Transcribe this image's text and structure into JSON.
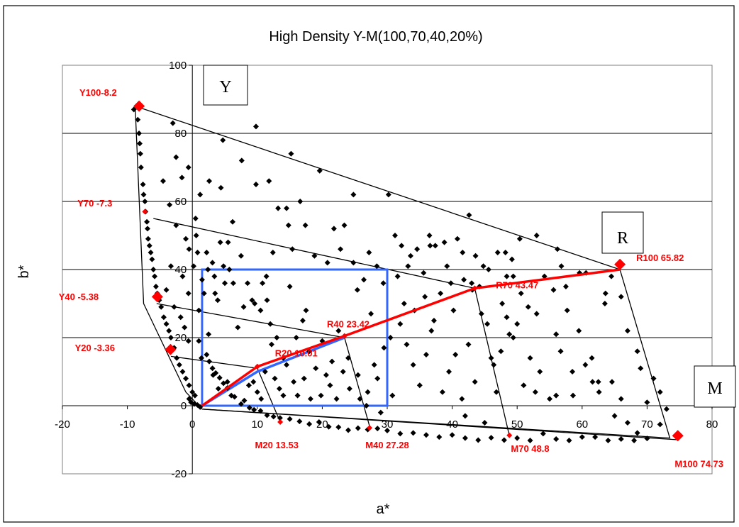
{
  "chart_data": {
    "type": "scatter",
    "title": "High Density Y-M(100,70,40,20%)",
    "xlabel": "a*",
    "ylabel": "b*",
    "xlim": [
      -20,
      80
    ],
    "ylim": [
      -20,
      100
    ],
    "x_ticks": [
      -20,
      -10,
      0,
      10,
      20,
      30,
      40,
      50,
      60,
      70,
      80
    ],
    "y_ticks": [
      -20,
      0,
      20,
      40,
      60,
      80,
      100
    ],
    "grid": "horizontal",
    "colors": {
      "points": "#000000",
      "highlight": "#ff0000",
      "redline": "#ff0000",
      "box": "#3366ff",
      "lines": "#000000"
    },
    "corner_labels": {
      "Y": "Y",
      "R": "R",
      "M": "M"
    },
    "scatter_points": [
      [
        -9,
        87
      ],
      [
        -8.6,
        88
      ],
      [
        -8.4,
        84
      ],
      [
        -8.2,
        80
      ],
      [
        -8.1,
        77
      ],
      [
        -8,
        74
      ],
      [
        -7.9,
        70
      ],
      [
        -7.6,
        65
      ],
      [
        -7.5,
        62
      ],
      [
        -7.3,
        60
      ],
      [
        -7.2,
        57
      ],
      [
        -7,
        54
      ],
      [
        -6.9,
        52
      ],
      [
        -6.8,
        49
      ],
      [
        -6.6,
        47
      ],
      [
        -6.4,
        45
      ],
      [
        -6.2,
        43
      ],
      [
        -6,
        40
      ],
      [
        -5.8,
        38
      ],
      [
        -5.6,
        35
      ],
      [
        -5.4,
        33
      ],
      [
        -5.1,
        31
      ],
      [
        -4.8,
        29
      ],
      [
        -4.4,
        26
      ],
      [
        -4,
        24
      ],
      [
        -3.6,
        22
      ],
      [
        -3.3,
        20
      ],
      [
        -2.8,
        17
      ],
      [
        -2.4,
        14
      ],
      [
        -2,
        12
      ],
      [
        -1.5,
        10
      ],
      [
        -1,
        8
      ],
      [
        -0.5,
        6
      ],
      [
        0,
        4
      ],
      [
        0.4,
        3
      ],
      [
        -0.5,
        2
      ],
      [
        -0.2,
        1
      ],
      [
        0.3,
        0.5
      ],
      [
        0.8,
        0.2
      ],
      [
        1.2,
        -0.4
      ],
      [
        -3,
        83
      ],
      [
        -4.5,
        66
      ],
      [
        -3.5,
        59
      ],
      [
        -2.5,
        53
      ],
      [
        -1,
        49
      ],
      [
        -0.5,
        46
      ],
      [
        -3.3,
        41
      ],
      [
        -1.5,
        38
      ],
      [
        -4,
        34
      ],
      [
        -2.8,
        29
      ],
      [
        -1.8,
        26
      ],
      [
        -1.2,
        23
      ],
      [
        -0.6,
        19
      ],
      [
        1,
        19
      ],
      [
        1.4,
        14
      ],
      [
        2.2,
        15
      ],
      [
        2.6,
        13
      ],
      [
        3.1,
        11
      ],
      [
        3.6,
        9.6
      ],
      [
        4.2,
        8.2
      ],
      [
        4.8,
        6.6
      ],
      [
        5.4,
        5.2
      ],
      [
        6.5,
        2.6
      ],
      [
        7.5,
        0.5
      ],
      [
        8.8,
        -0.6
      ],
      [
        9.5,
        -1.2
      ],
      [
        10.5,
        -1.5
      ],
      [
        11.5,
        -2.8
      ],
      [
        12.5,
        -3.2
      ],
      [
        13.5,
        -3.6
      ],
      [
        15,
        -3.9
      ],
      [
        16.5,
        -4.6
      ],
      [
        18,
        -5.4
      ],
      [
        19.5,
        -4.8
      ],
      [
        21,
        -6.2
      ],
      [
        22.5,
        -6.3
      ],
      [
        24,
        -7.2
      ],
      [
        25.5,
        -6.6
      ],
      [
        27,
        -7
      ],
      [
        28.5,
        -6.7
      ],
      [
        30,
        -7.3
      ],
      [
        32,
        -8.2
      ],
      [
        34,
        -8
      ],
      [
        36,
        -8.6
      ],
      [
        38,
        -9.2
      ],
      [
        40,
        -8.6
      ],
      [
        42,
        -9.5
      ],
      [
        44,
        -10.1
      ],
      [
        46,
        -9.4
      ],
      [
        48,
        -10.1
      ],
      [
        50,
        -9.5
      ],
      [
        52,
        -10.2
      ],
      [
        54,
        -8.2
      ],
      [
        56,
        -9.8
      ],
      [
        58,
        -10.2
      ],
      [
        60,
        -9.2
      ],
      [
        62,
        -9.2
      ],
      [
        64,
        -10.2
      ],
      [
        66,
        -9.8
      ],
      [
        68,
        -10.2
      ],
      [
        70,
        -9.6
      ],
      [
        72,
        -5.5
      ],
      [
        73,
        -1
      ],
      [
        70,
        1
      ],
      [
        71,
        8
      ],
      [
        72,
        4
      ],
      [
        69,
        11
      ],
      [
        68.5,
        16
      ],
      [
        67,
        22
      ],
      [
        66,
        32
      ],
      [
        5,
        36
      ],
      [
        6.2,
        54
      ],
      [
        5.5,
        48
      ],
      [
        4.8,
        41
      ],
      [
        3.5,
        33
      ],
      [
        7,
        23
      ],
      [
        8.5,
        36
      ],
      [
        9.2,
        31
      ],
      [
        10.5,
        28
      ],
      [
        11.5,
        31
      ],
      [
        12,
        24
      ],
      [
        12.2,
        18
      ],
      [
        13,
        20
      ],
      [
        14,
        14
      ],
      [
        14.5,
        12
      ],
      [
        15,
        35
      ],
      [
        16,
        20
      ],
      [
        17,
        25
      ],
      [
        17.5,
        28
      ],
      [
        18,
        16
      ],
      [
        19,
        11
      ],
      [
        20,
        19
      ],
      [
        21.5,
        13
      ],
      [
        22.5,
        22
      ],
      [
        24,
        14
      ],
      [
        25.5,
        9
      ],
      [
        27,
        4
      ],
      [
        27.5,
        27
      ],
      [
        28.5,
        8
      ],
      [
        29.5,
        17
      ],
      [
        30.5,
        20
      ],
      [
        32,
        24
      ],
      [
        33,
        18
      ],
      [
        34,
        12
      ],
      [
        35,
        6
      ],
      [
        36,
        15
      ],
      [
        37.2,
        25
      ],
      [
        38.5,
        4
      ],
      [
        39.5,
        10
      ],
      [
        40.5,
        15
      ],
      [
        41.5,
        2
      ],
      [
        42.5,
        18
      ],
      [
        43.5,
        7
      ],
      [
        44.5,
        27
      ],
      [
        46,
        14
      ],
      [
        46.8,
        4
      ],
      [
        47.5,
        16
      ],
      [
        48.8,
        21
      ],
      [
        50,
        24
      ],
      [
        51,
        6
      ],
      [
        52,
        14
      ],
      [
        53,
        27
      ],
      [
        53.5,
        10
      ],
      [
        55,
        2
      ],
      [
        56,
        21
      ],
      [
        57.5,
        35
      ],
      [
        58.5,
        10
      ],
      [
        59.5,
        22
      ],
      [
        60.5,
        12
      ],
      [
        61.5,
        14
      ],
      [
        62.5,
        7
      ],
      [
        63.5,
        30
      ],
      [
        64.5,
        38
      ],
      [
        65,
        -3
      ],
      [
        66,
        2
      ],
      [
        67,
        -5
      ],
      [
        68.5,
        -8
      ],
      [
        56,
        3
      ],
      [
        42,
        -3
      ],
      [
        45,
        -5
      ],
      [
        1,
        28
      ],
      [
        2.5,
        21
      ],
      [
        3.2,
        9
      ],
      [
        4,
        5
      ],
      [
        5.4,
        7
      ],
      [
        6,
        3
      ],
      [
        8,
        1.5
      ],
      [
        8.7,
        6
      ],
      [
        9.4,
        7
      ],
      [
        10,
        4
      ],
      [
        10.6,
        2
      ],
      [
        11.2,
        10
      ],
      [
        12.7,
        8
      ],
      [
        13.4,
        5
      ],
      [
        14,
        3
      ],
      [
        15.6,
        7
      ],
      [
        16.2,
        3
      ],
      [
        17.2,
        8
      ],
      [
        18.2,
        2
      ],
      [
        19.8,
        3
      ],
      [
        20.6,
        9
      ],
      [
        21.2,
        6
      ],
      [
        22.2,
        2
      ],
      [
        23.2,
        10
      ],
      [
        24.2,
        5
      ],
      [
        25.8,
        2
      ],
      [
        26.8,
        0
      ],
      [
        28,
        12
      ],
      [
        29,
        -2
      ],
      [
        30.8,
        3
      ],
      [
        31.6,
        38
      ],
      [
        32.6,
        30
      ],
      [
        33.2,
        41
      ],
      [
        34.2,
        28
      ],
      [
        35.8,
        32
      ],
      [
        36.8,
        22
      ],
      [
        38.2,
        33
      ],
      [
        39.2,
        41
      ],
      [
        40.2,
        28
      ],
      [
        41.8,
        37
      ],
      [
        43,
        36
      ],
      [
        44.2,
        35
      ],
      [
        45.4,
        24
      ],
      [
        46.4,
        12
      ],
      [
        47.7,
        30
      ],
      [
        48.4,
        38
      ],
      [
        49.4,
        20
      ],
      [
        50.6,
        33
      ],
      [
        51.7,
        29
      ],
      [
        52.8,
        4
      ],
      [
        54.2,
        38
      ],
      [
        55.6,
        34
      ],
      [
        56.7,
        16
      ],
      [
        57.7,
        28
      ],
      [
        58.6,
        3
      ],
      [
        59.6,
        39
      ],
      [
        60.6,
        39
      ],
      [
        61.6,
        7
      ],
      [
        62.6,
        4
      ],
      [
        63.6,
        33
      ],
      [
        64.6,
        7
      ],
      [
        1.8,
        33
      ],
      [
        2.4,
        40
      ],
      [
        3.1,
        42
      ],
      [
        4.3,
        48
      ],
      [
        5.7,
        40
      ],
      [
        6.3,
        36
      ],
      [
        7.5,
        44
      ],
      [
        7.9,
        29
      ],
      [
        9.6,
        30
      ],
      [
        10.8,
        36
      ],
      [
        11.4,
        38
      ],
      [
        12.4,
        45
      ],
      [
        13.2,
        58
      ],
      [
        14.8,
        53
      ],
      [
        15.4,
        46
      ],
      [
        16.6,
        60
      ],
      [
        17.4,
        53
      ],
      [
        18.8,
        44
      ],
      [
        19.6,
        69
      ],
      [
        20.8,
        42
      ],
      [
        21.8,
        52
      ],
      [
        22.8,
        46
      ],
      [
        23.4,
        53
      ],
      [
        24.8,
        42
      ],
      [
        25.4,
        34
      ],
      [
        26.4,
        37
      ],
      [
        27.2,
        45
      ],
      [
        28.4,
        41
      ],
      [
        29.4,
        36
      ],
      [
        30.2,
        62
      ],
      [
        31.2,
        50
      ],
      [
        32.2,
        47
      ],
      [
        33.6,
        44
      ],
      [
        34.6,
        46
      ],
      [
        35.6,
        39
      ],
      [
        36.6,
        47
      ],
      [
        37.4,
        47
      ],
      [
        38.8,
        48
      ],
      [
        39.8,
        36
      ],
      [
        40.8,
        49
      ],
      [
        41.6,
        45
      ],
      [
        42.6,
        56
      ],
      [
        43.6,
        44
      ],
      [
        44.8,
        41
      ],
      [
        45.6,
        40
      ],
      [
        47,
        45
      ],
      [
        48.2,
        45
      ],
      [
        49.2,
        43
      ],
      [
        50.4,
        49
      ],
      [
        9.8,
        82
      ],
      [
        15.2,
        74
      ],
      [
        24.8,
        62
      ],
      [
        36.5,
        50
      ],
      [
        43.1,
        34
      ],
      [
        49.4,
        38
      ],
      [
        56.8,
        41
      ],
      [
        53,
        50
      ],
      [
        56.2,
        46
      ],
      [
        48.4,
        26
      ],
      [
        14.5,
        58
      ],
      [
        4.7,
        78
      ],
      [
        1.2,
        62
      ],
      [
        -0.6,
        70
      ],
      [
        0.5,
        55
      ],
      [
        2.6,
        66
      ],
      [
        4.4,
        64
      ],
      [
        7.6,
        72
      ],
      [
        9.8,
        65
      ],
      [
        11.8,
        66
      ],
      [
        -2.5,
        73
      ],
      [
        -1.6,
        67
      ],
      [
        0.2,
        41
      ],
      [
        0.6,
        50
      ],
      [
        0.8,
        45
      ],
      [
        -0.6,
        33
      ],
      [
        1.5,
        37
      ],
      [
        2.2,
        45
      ],
      [
        3.4,
        38
      ],
      [
        3.9,
        31
      ]
    ],
    "highlight_points": [
      {
        "x": -8.2,
        "y": 88,
        "big": true
      },
      {
        "x": -7.3,
        "y": 57,
        "big": false
      },
      {
        "x": -5.38,
        "y": 32,
        "big": true
      },
      {
        "x": -3.36,
        "y": 16.5,
        "big": true
      },
      {
        "x": 13.53,
        "y": -4.8,
        "big": false
      },
      {
        "x": 27.28,
        "y": -6.5,
        "big": false
      },
      {
        "x": 48.8,
        "y": -8.7,
        "big": false
      },
      {
        "x": 74.73,
        "y": -8.8,
        "big": true
      },
      {
        "x": 65.82,
        "y": 41.5,
        "big": true
      },
      {
        "x": 43.47,
        "y": 34.5,
        "big": false
      },
      {
        "x": 23.42,
        "y": 20.5,
        "big": false
      },
      {
        "x": 10.01,
        "y": 11.5,
        "big": false
      }
    ],
    "series": [
      {
        "points": [
          [
            1.5,
            0
          ],
          [
            10.01,
            11.5
          ],
          [
            23.42,
            20.5
          ],
          [
            43.47,
            34.5
          ],
          [
            65.82,
            40
          ]
        ]
      }
    ],
    "boundary_lines": [
      [
        [
          -8.8,
          88
        ],
        [
          65.82,
          40
        ],
        [
          73.5,
          -9.5
        ],
        [
          1.5,
          -1
        ],
        [
          -1,
          4
        ],
        [
          -7.5,
          30
        ],
        [
          -8.8,
          88
        ]
      ],
      [
        [
          -6,
          55
        ],
        [
          43.47,
          34.5
        ],
        [
          48.8,
          -8.8
        ]
      ],
      [
        [
          -5.5,
          30
        ],
        [
          23.42,
          20
        ],
        [
          27.28,
          -6
        ]
      ],
      [
        [
          -3.3,
          14.5
        ],
        [
          10.01,
          11
        ],
        [
          13.53,
          -4.8
        ]
      ],
      [
        [
          1.5,
          -1
        ],
        [
          74.73,
          -10
        ]
      ],
      [
        [
          30,
          20
        ],
        [
          30,
          0
        ]
      ]
    ],
    "blue_box": {
      "x": [
        1.5,
        30
      ],
      "y": [
        0,
        40
      ]
    },
    "blue_curve": [
      [
        1.5,
        0
      ],
      [
        10,
        10
      ],
      [
        23.42,
        20
      ]
    ],
    "labels": [
      {
        "text": "Y100-8.2",
        "x": -14.5,
        "y": 91
      },
      {
        "text": "Y70 -7.3",
        "x": -15,
        "y": 58.5
      },
      {
        "text": "Y40 -5.38",
        "x": -17.5,
        "y": 31
      },
      {
        "text": "Y20 -3.36",
        "x": -15,
        "y": 16
      },
      {
        "text": "R20 10.01",
        "x": 16,
        "y": 14.5
      },
      {
        "text": "R40 23.42",
        "x": 24,
        "y": 23
      },
      {
        "text": "R70 43.47",
        "x": 50,
        "y": 34.5
      },
      {
        "text": "R100 65.82",
        "x": 72,
        "y": 42.5
      },
      {
        "text": "M20 13.53",
        "x": 13,
        "y": -12.5
      },
      {
        "text": "M40 27.28",
        "x": 30,
        "y": -12.5
      },
      {
        "text": "M70 48.8",
        "x": 52,
        "y": -13.5
      },
      {
        "text": "M100 74.73",
        "x": 78,
        "y": -18
      }
    ]
  }
}
